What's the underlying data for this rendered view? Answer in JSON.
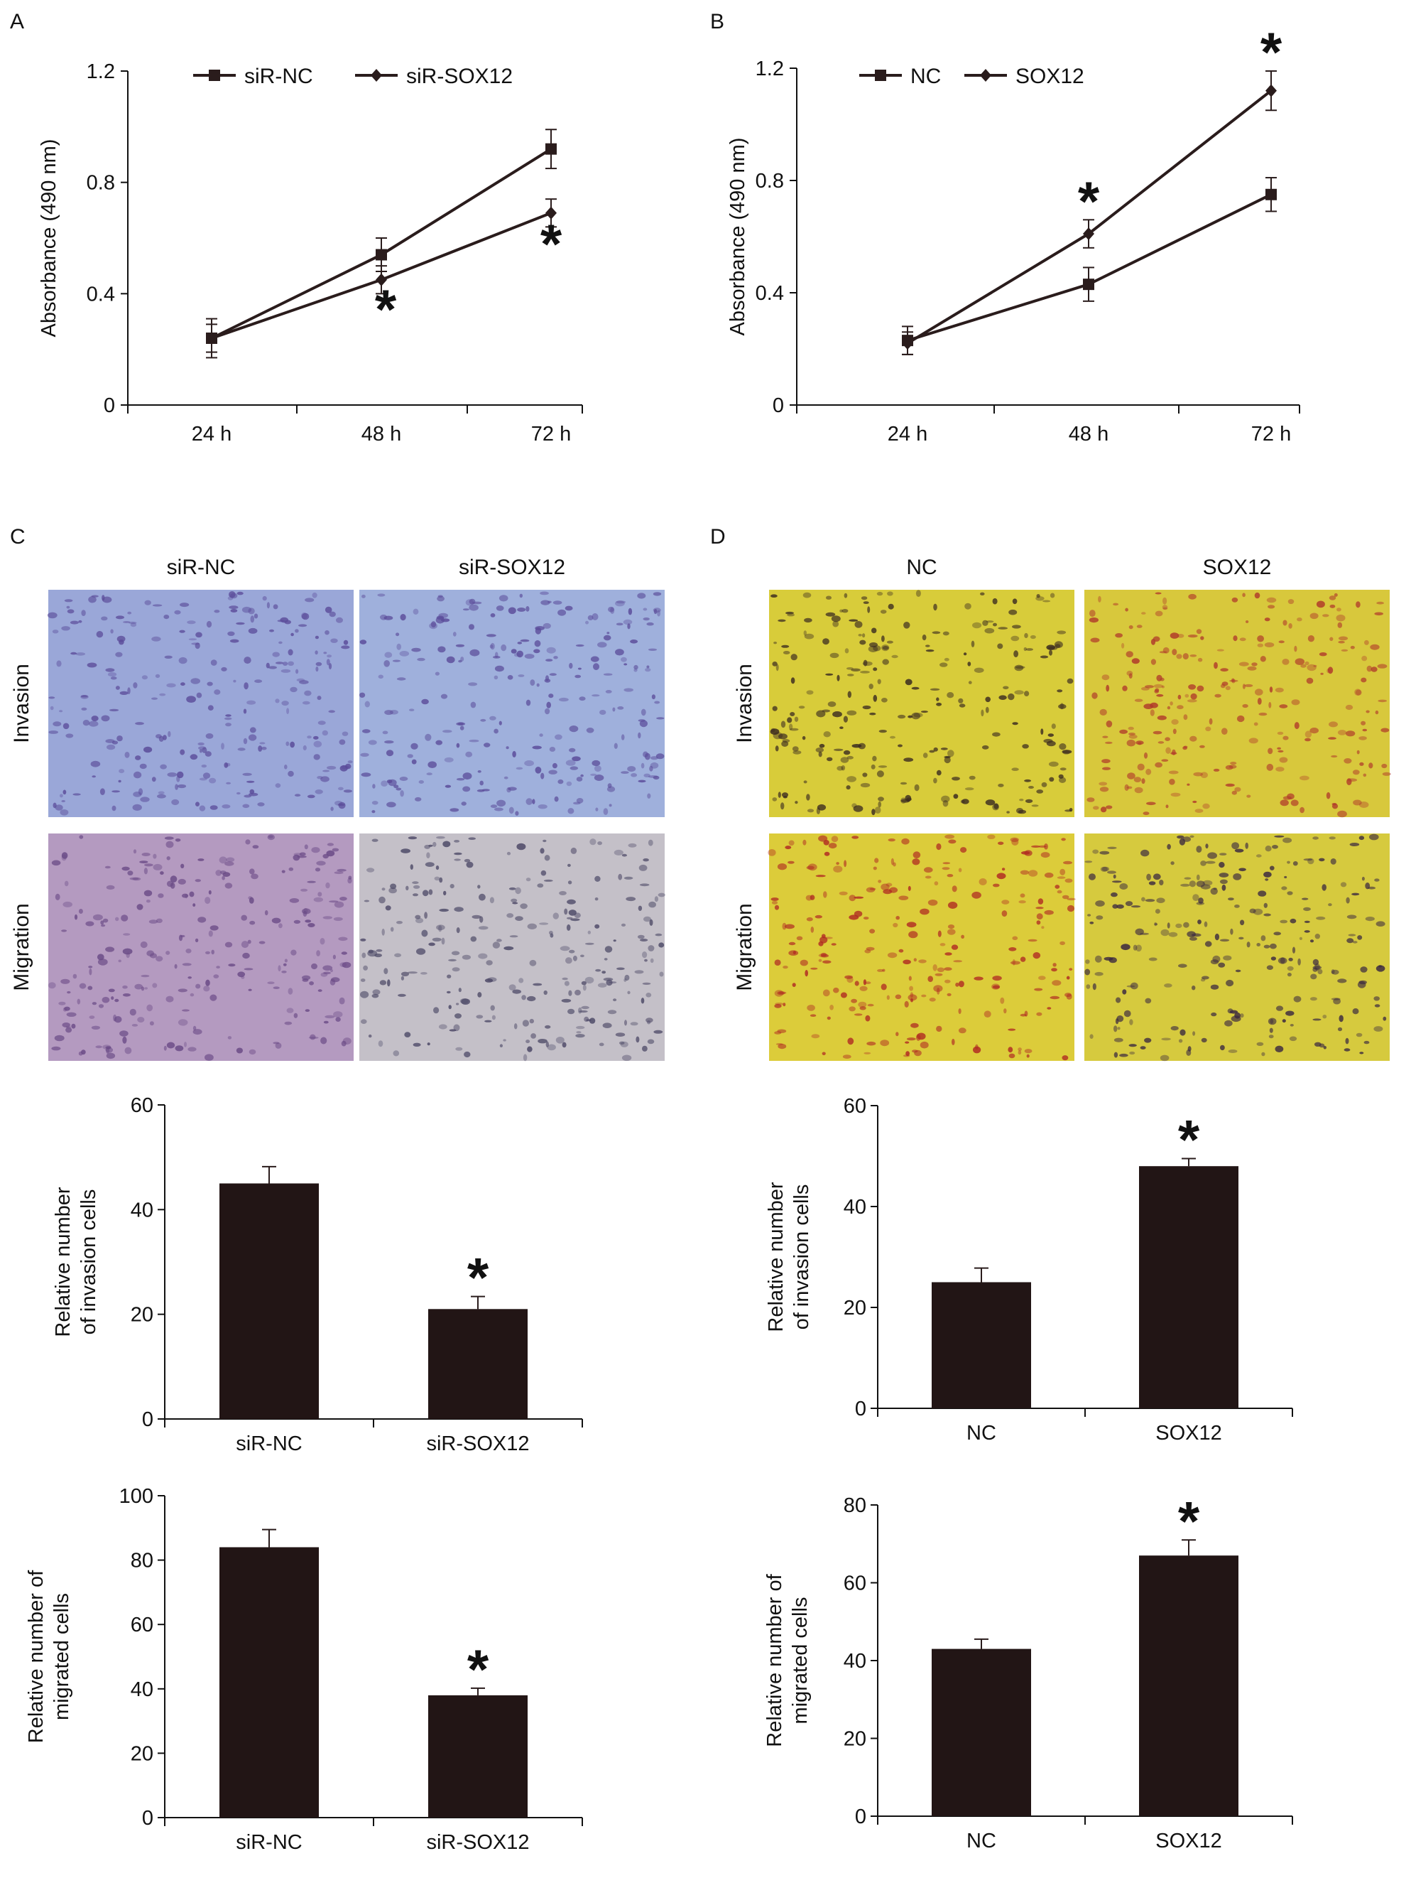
{
  "panels": {
    "A": {
      "letter": "A",
      "chart_data": {
        "type": "line",
        "categories": [
          "24 h",
          "48 h",
          "72 h"
        ],
        "ylabel": "Absorbance (490 nm)",
        "ylim": [
          0,
          1.2
        ],
        "yticks": [
          "0",
          "0.4",
          "0.8",
          "1.2"
        ],
        "grid": false,
        "legend_position": "top",
        "series": [
          {
            "name": "siR-NC",
            "marker": "square",
            "values": [
              0.24,
              0.54,
              0.92
            ],
            "errors": [
              0.07,
              0.06,
              0.07
            ]
          },
          {
            "name": "siR-SOX12",
            "marker": "diamond",
            "values": [
              0.24,
              0.45,
              0.69
            ],
            "errors": [
              0.05,
              0.05,
              0.05
            ]
          }
        ],
        "significance": [
          {
            "category": "48 h",
            "label": "*"
          },
          {
            "category": "72 h",
            "label": "*"
          }
        ]
      }
    },
    "B": {
      "letter": "B",
      "chart_data": {
        "type": "line",
        "categories": [
          "24 h",
          "48 h",
          "72 h"
        ],
        "ylabel": "Absorbance (490 nm)",
        "ylim": [
          0,
          1.2
        ],
        "yticks": [
          "0",
          "0.4",
          "0.8",
          "1.2"
        ],
        "grid": false,
        "legend_position": "top",
        "series": [
          {
            "name": "NC",
            "marker": "square",
            "values": [
              0.23,
              0.43,
              0.75
            ],
            "errors": [
              0.05,
              0.06,
              0.06
            ]
          },
          {
            "name": "SOX12",
            "marker": "diamond",
            "values": [
              0.22,
              0.61,
              1.12
            ],
            "errors": [
              0.04,
              0.05,
              0.07
            ]
          }
        ],
        "significance": [
          {
            "category": "48 h",
            "label": "*"
          },
          {
            "category": "72 h",
            "label": "*"
          }
        ]
      }
    },
    "C": {
      "letter": "C",
      "images": {
        "columns": [
          "siR-NC",
          "siR-SOX12"
        ],
        "rows": [
          "Invasion",
          "Migration"
        ],
        "tints": [
          [
            "#9aa7d8",
            "#9fb0dc"
          ],
          [
            "#b49ac0",
            "#c4c0c8"
          ]
        ],
        "cell_colors": [
          [
            "#5b4c9a",
            "#5b4c9a"
          ],
          [
            "#6a4a86",
            "#4c4866"
          ]
        ]
      },
      "bar_invasion": {
        "type": "bar",
        "categories": [
          "siR-NC",
          "siR-SOX12"
        ],
        "values": [
          45,
          21
        ],
        "errors": [
          3.2,
          2.4
        ],
        "ylabel": "Relative number of invasion cells",
        "ylabel_lines": [
          "Relative number",
          "of invasion cells"
        ],
        "ylim": [
          0,
          60
        ],
        "yticks": [
          "0",
          "20",
          "40",
          "60"
        ],
        "significance": [
          {
            "category": "siR-SOX12",
            "label": "*"
          }
        ]
      },
      "bar_migration": {
        "type": "bar",
        "categories": [
          "siR-NC",
          "siR-SOX12"
        ],
        "values": [
          84,
          38
        ],
        "errors": [
          5.5,
          2.2
        ],
        "ylabel": "Relative number of migrated cells",
        "ylabel_lines": [
          "Relative number of",
          "migrated cells"
        ],
        "ylim": [
          0,
          100
        ],
        "yticks": [
          "0",
          "20",
          "40",
          "60",
          "80",
          "100"
        ],
        "significance": [
          {
            "category": "siR-SOX12",
            "label": "*"
          }
        ]
      }
    },
    "D": {
      "letter": "D",
      "images": {
        "columns": [
          "NC",
          "SOX12"
        ],
        "rows": [
          "Invasion",
          "Migration"
        ],
        "tints": [
          [
            "#d8cc3a",
            "#d8c83c"
          ],
          [
            "#dccc3a",
            "#d6ca3e"
          ]
        ],
        "cell_colors": [
          [
            "#3a2a20",
            "#b03a2a"
          ],
          [
            "#b02a22",
            "#3a2840"
          ]
        ]
      },
      "bar_invasion": {
        "type": "bar",
        "categories": [
          "NC",
          "SOX12"
        ],
        "values": [
          25,
          48
        ],
        "errors": [
          2.8,
          1.5
        ],
        "ylabel": "Relative number of invasion cells",
        "ylabel_lines": [
          "Relative number",
          "of invasion cells"
        ],
        "ylim": [
          0,
          60
        ],
        "yticks": [
          "0",
          "20",
          "40",
          "60"
        ],
        "significance": [
          {
            "category": "SOX12",
            "label": "*"
          }
        ]
      },
      "bar_migration": {
        "type": "bar",
        "categories": [
          "NC",
          "SOX12"
        ],
        "values": [
          43,
          67
        ],
        "errors": [
          2.5,
          4.0
        ],
        "ylabel": "Relative number of migrated cells",
        "ylabel_lines": [
          "Relative number of",
          "migrated cells"
        ],
        "ylim": [
          0,
          80
        ],
        "yticks": [
          "0",
          "20",
          "40",
          "60",
          "80"
        ],
        "significance": [
          {
            "category": "SOX12",
            "label": "*"
          }
        ]
      }
    }
  }
}
